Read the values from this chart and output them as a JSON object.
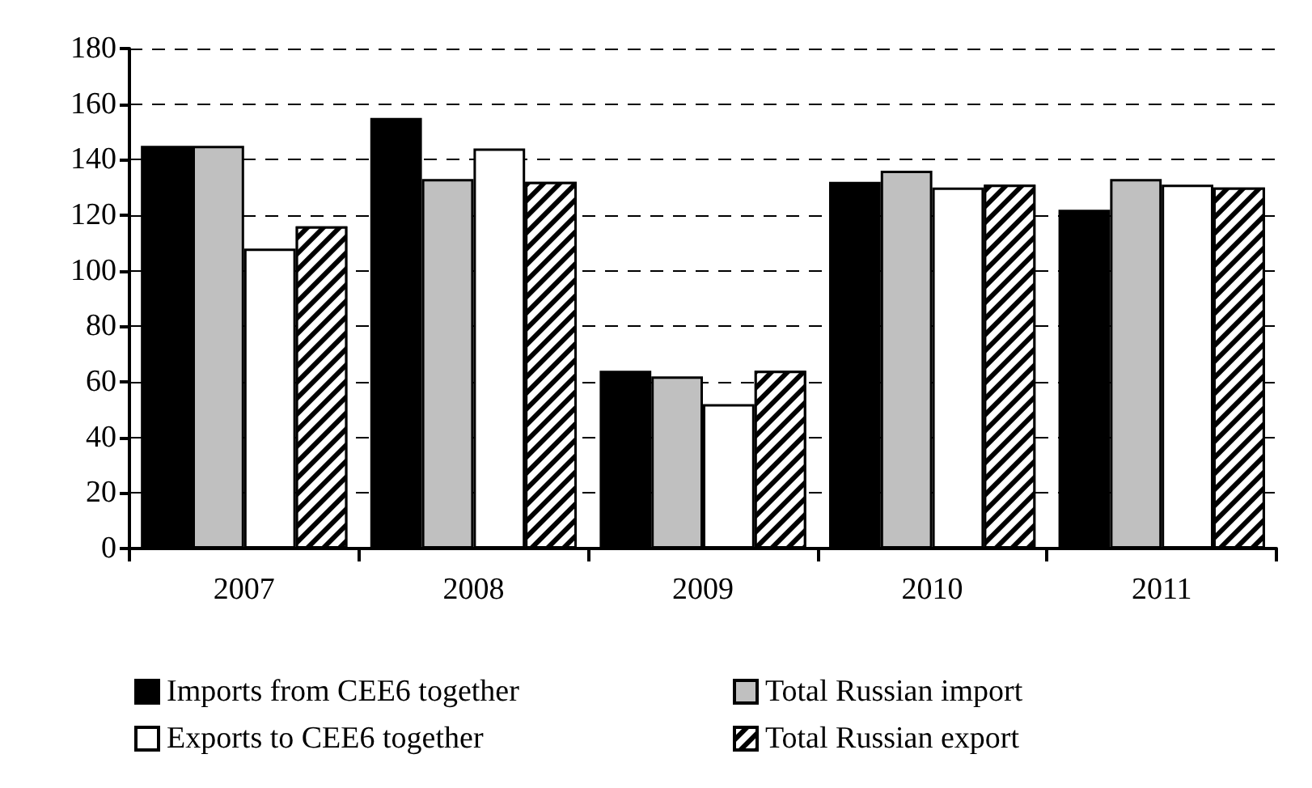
{
  "chart_data": {
    "type": "bar",
    "categories": [
      "2007",
      "2008",
      "2009",
      "2010",
      "2011"
    ],
    "series": [
      {
        "name": "Imports from CEE6 together",
        "color": "#000000",
        "values": [
          145,
          155,
          64,
          132,
          122
        ]
      },
      {
        "name": "Total Russian import",
        "color": "#c0c0c0",
        "values": [
          145,
          133,
          62,
          136,
          133
        ]
      },
      {
        "name": "Exports to CEE6 together",
        "color": "#ffffff",
        "values": [
          108,
          144,
          52,
          130,
          131
        ]
      },
      {
        "name": "Total Russian export",
        "color": "#000000",
        "values": [
          116,
          132,
          64,
          131,
          130
        ]
      }
    ],
    "ylim": [
      0,
      180
    ],
    "yticks": [
      0,
      20,
      40,
      60,
      80,
      100,
      120,
      140,
      160,
      180
    ],
    "grid": "y",
    "legend": "bottom"
  }
}
